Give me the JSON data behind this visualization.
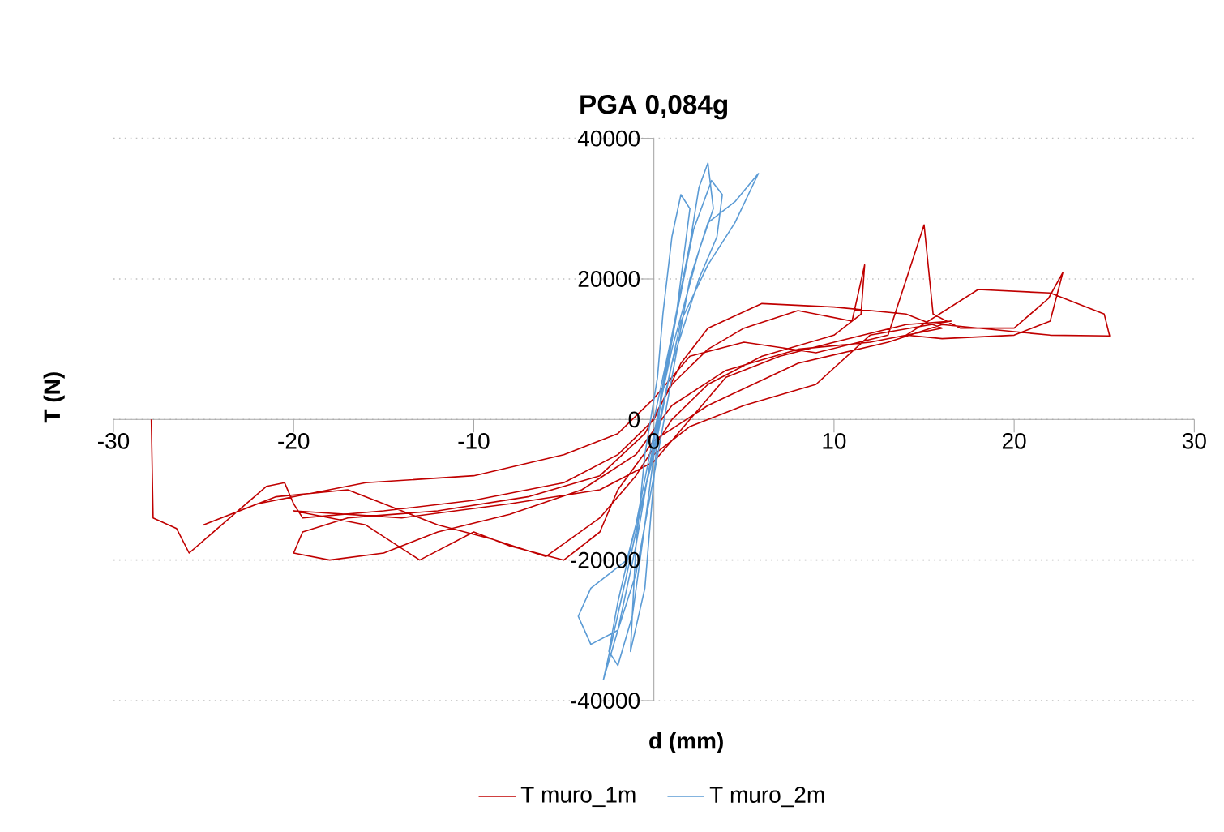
{
  "chart_data": {
    "type": "line",
    "title": "PGA 0,084g",
    "xlabel": "d (mm)",
    "ylabel": "T (N)",
    "xlim": [
      -30,
      30
    ],
    "ylim": [
      -40000,
      40000
    ],
    "xticks": [
      -30,
      -20,
      -10,
      0,
      10,
      20,
      30
    ],
    "yticks": [
      -40000,
      -20000,
      0,
      20000,
      40000
    ],
    "grid": "y",
    "legend": "bottom",
    "marker": "none",
    "line_style": "solid",
    "series": [
      {
        "name": "T muro_1m",
        "color": "#c00000",
        "x": [
          -27.9,
          -27.8,
          -26.5,
          -25.8,
          -24,
          -21.5,
          -20.5,
          -20,
          -19.5,
          -15,
          -10,
          -5,
          -2,
          0,
          1.5,
          3,
          6,
          10,
          14,
          16,
          12,
          8,
          4,
          1,
          -1,
          -4,
          -8,
          -12,
          -15,
          -18,
          -20,
          -19.5,
          -17,
          -12,
          -7,
          -3,
          -0.5,
          1,
          3,
          5,
          8,
          11,
          11.7,
          11.5,
          10,
          6,
          3,
          1,
          -1,
          -3,
          -6,
          -9,
          -12,
          -15,
          -17,
          -21,
          -25,
          -22,
          -16,
          -10,
          -5,
          -2,
          0,
          2,
          5,
          9,
          13,
          15,
          15.5,
          17,
          20,
          21.9,
          22.7,
          22,
          20,
          16,
          14,
          18,
          22,
          25,
          25.3,
          22,
          16,
          13,
          8,
          3,
          0,
          -2,
          -3,
          -5,
          -8,
          -10,
          -13,
          -16,
          -20,
          -14,
          -8,
          -3,
          0,
          2,
          4,
          7,
          10,
          14,
          16.5,
          12,
          9,
          5,
          2,
          0
        ],
        "values": [
          0,
          -14000,
          -15500,
          -19000,
          -15000,
          -9500,
          -9000,
          -12000,
          -14000,
          -13000,
          -11500,
          -9000,
          -5000,
          0,
          8000,
          13000,
          16500,
          16000,
          15000,
          13000,
          11000,
          10000,
          7000,
          2000,
          -5000,
          -10000,
          -13500,
          -16000,
          -19000,
          -20000,
          -19000,
          -16000,
          -14000,
          -13000,
          -11000,
          -8000,
          -2000,
          5000,
          10000,
          13000,
          15500,
          14000,
          22000,
          15000,
          12000,
          9000,
          5000,
          0,
          -8000,
          -14000,
          -19500,
          -17000,
          -15000,
          -12000,
          -10000,
          -11000,
          -15000,
          -12000,
          -9000,
          -8000,
          -5000,
          -2000,
          3000,
          9000,
          11000,
          9500,
          12000,
          27700,
          15000,
          13000,
          13000,
          17200,
          20900,
          14000,
          12000,
          11500,
          12000,
          18500,
          18000,
          15000,
          11900,
          12000,
          13500,
          11000,
          8000,
          2000,
          -3000,
          -10000,
          -16000,
          -20000,
          -18000,
          -16000,
          -20000,
          -15000,
          -13000,
          -14000,
          -12000,
          -10000,
          -6000,
          0,
          6000,
          9000,
          11000,
          13500,
          14000,
          12000,
          5000,
          2000,
          -1000,
          -5000
        ]
      },
      {
        "name": "T muro_2m",
        "color": "#5b9bd5",
        "x": [
          0,
          1,
          2,
          2.5,
          3,
          3.3,
          2.5,
          1,
          0,
          -1,
          -2,
          -2.5,
          -2,
          -1.2,
          -0.5,
          0.5,
          1.5,
          2.2,
          3.2,
          3.8,
          3.5,
          2.5,
          1,
          0,
          -1.5,
          -3.5,
          -4.2,
          -3.5,
          -2,
          -1,
          0,
          1,
          2,
          3,
          4.5,
          5.8,
          4.5,
          3,
          1.5,
          0.5,
          -0.5,
          -1.5,
          -2.8,
          -2,
          -1,
          0,
          1.2,
          2,
          1.5,
          1,
          0.5,
          0.2,
          -0.5,
          -1,
          -1.3,
          -0.5,
          0.4
        ],
        "values": [
          0,
          12000,
          25000,
          33000,
          36500,
          30000,
          24000,
          10000,
          -2000,
          -15000,
          -26000,
          -33000,
          -35000,
          -28000,
          -15000,
          5000,
          18000,
          27000,
          34000,
          32000,
          26000,
          20000,
          8000,
          -5000,
          -20000,
          -24000,
          -28000,
          -32000,
          -30000,
          -22000,
          -8000,
          6000,
          20000,
          28000,
          31000,
          35000,
          28000,
          22000,
          14000,
          2000,
          -10000,
          -22000,
          -37000,
          -30000,
          -18000,
          -3000,
          14000,
          30000,
          32000,
          26000,
          15000,
          6000,
          -5000,
          -18000,
          -33000,
          -24000,
          4000
        ]
      }
    ]
  }
}
